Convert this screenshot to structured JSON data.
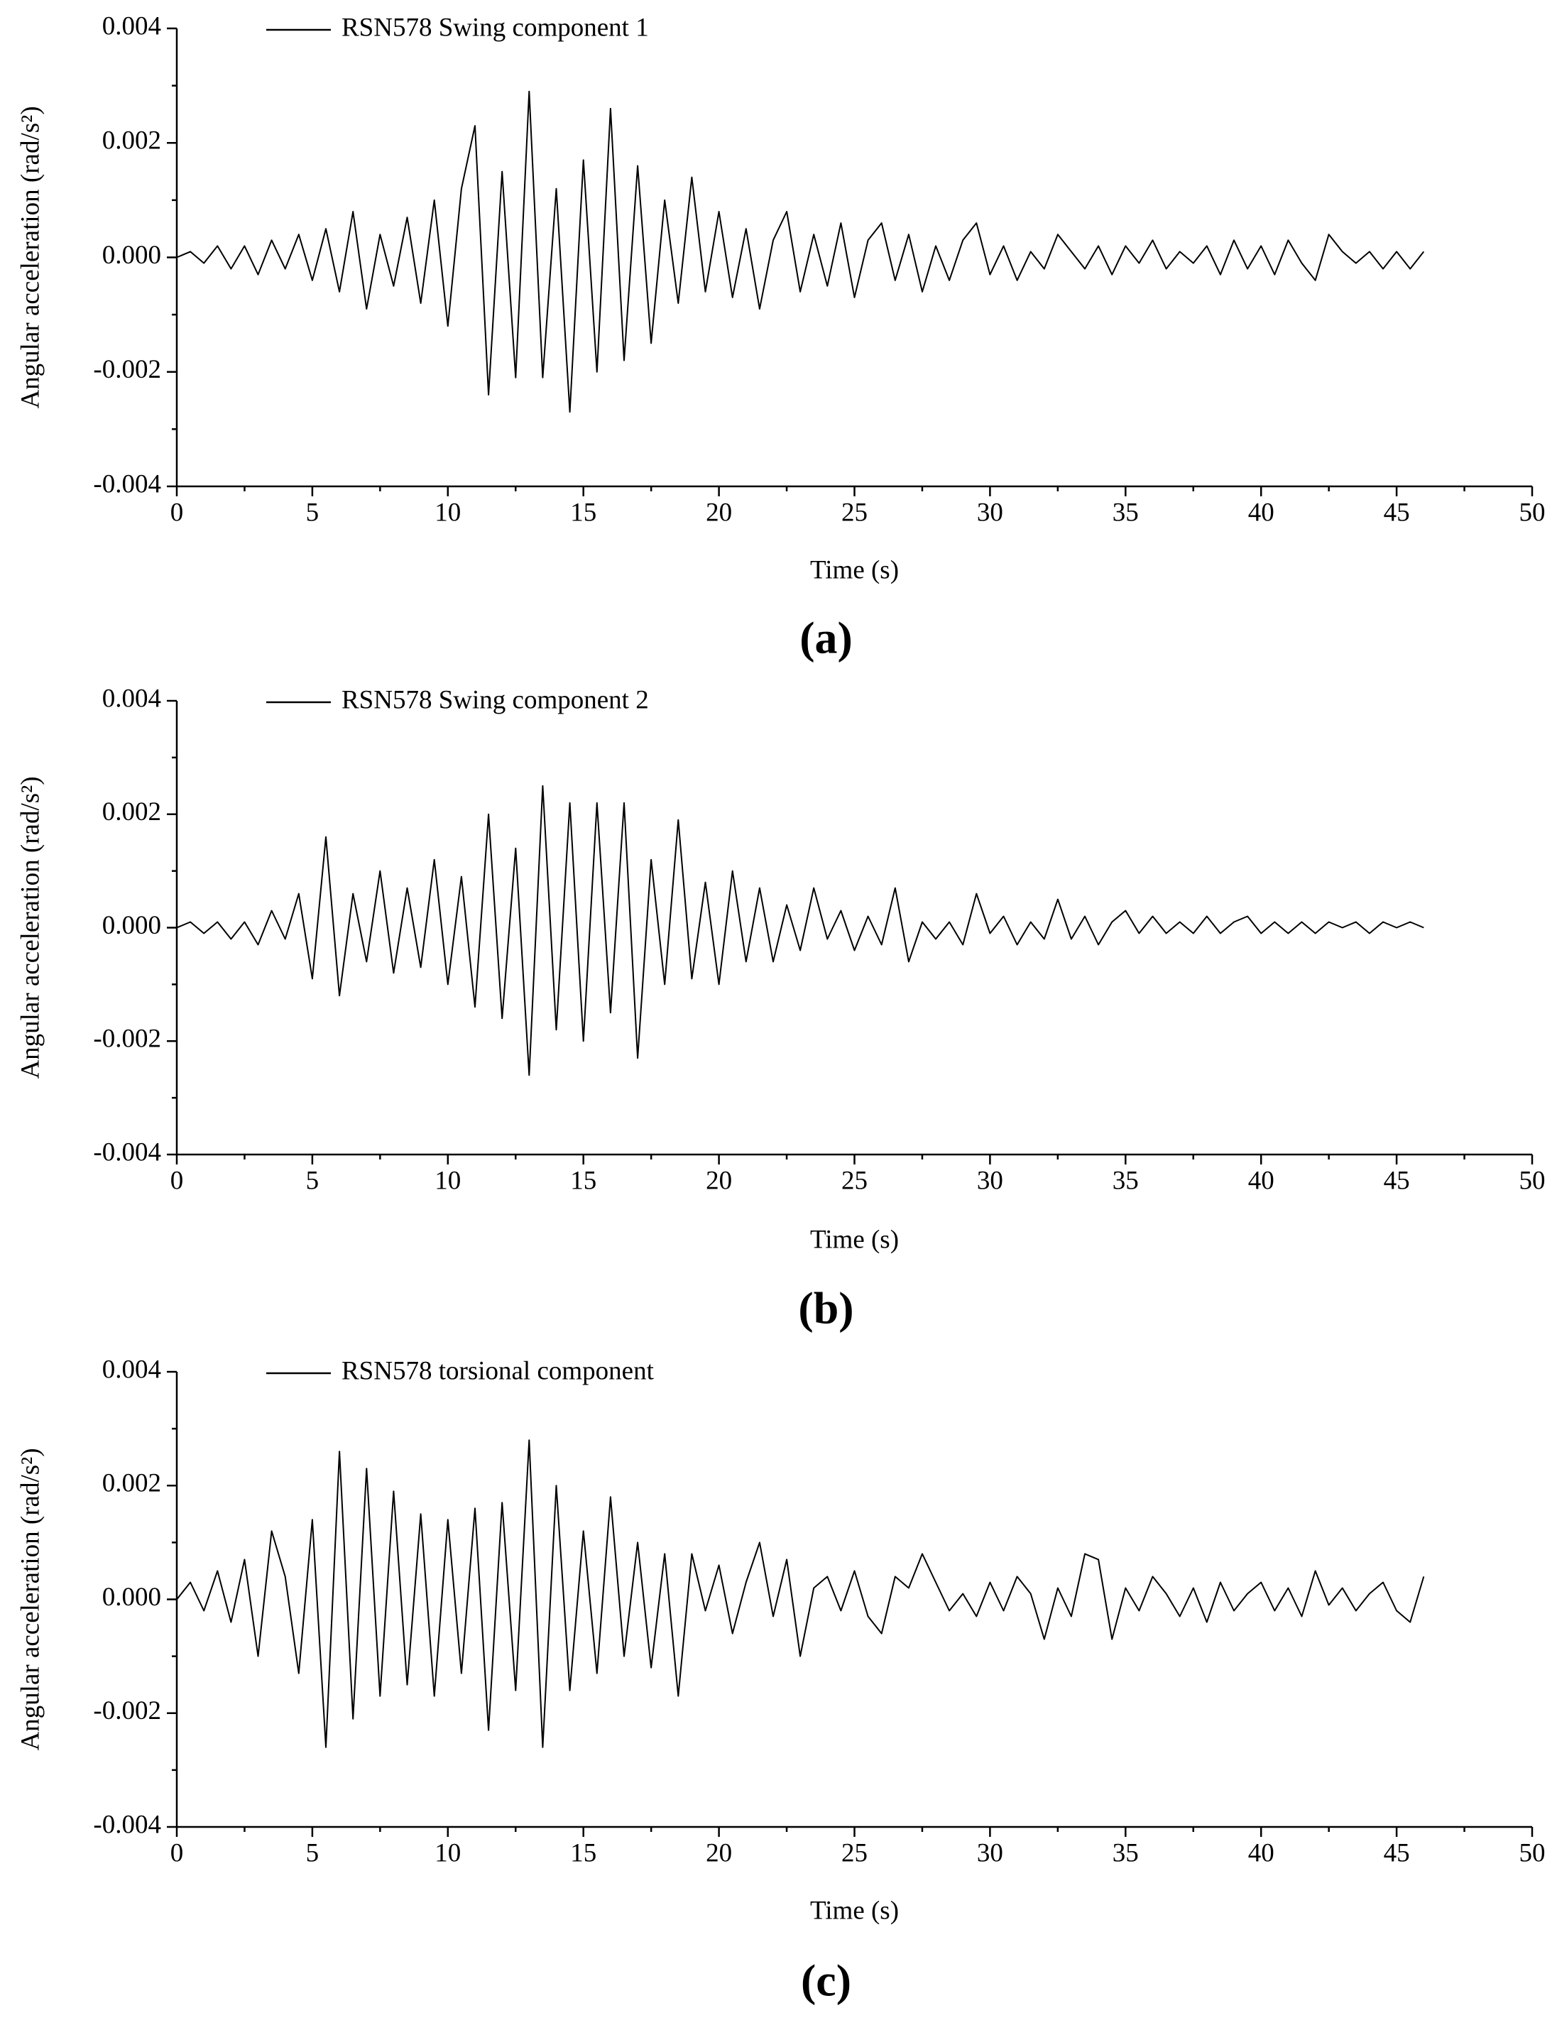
{
  "chart_data": [
    {
      "type": "line",
      "panel_label": "(a)",
      "xlabel": "Time (s)",
      "ylabel": "Angular acceleration (rad/s²)",
      "legend": "upper left",
      "x": [
        0,
        0.5,
        1,
        1.5,
        2,
        2.5,
        3,
        3.5,
        4,
        4.5,
        5,
        5.5,
        6,
        6.5,
        7,
        7.5,
        8,
        8.5,
        9,
        9.5,
        10,
        10.5,
        11,
        11.5,
        12,
        12.5,
        13,
        13.5,
        14,
        14.5,
        15,
        15.5,
        16,
        16.5,
        17,
        17.5,
        18,
        18.5,
        19,
        19.5,
        20,
        20.5,
        21,
        21.5,
        22,
        22.5,
        23,
        23.5,
        24,
        24.5,
        25,
        25.5,
        26,
        26.5,
        27,
        27.5,
        28,
        28.5,
        29,
        29.5,
        30,
        30.5,
        31,
        31.5,
        32,
        32.5,
        33,
        33.5,
        34,
        34.5,
        35,
        35.5,
        36,
        36.5,
        37,
        37.5,
        38,
        38.5,
        39,
        39.5,
        40,
        40.5,
        41,
        41.5,
        42,
        42.5,
        43,
        43.5,
        44,
        44.5,
        45,
        45.5,
        46
      ],
      "series": [
        {
          "name": "RSN578 Swing component 1",
          "color": "#000000",
          "values": [
            0,
            0.0001,
            -0.0001,
            0.0002,
            -0.0002,
            0.0002,
            -0.0003,
            0.0003,
            -0.0002,
            0.0004,
            -0.0004,
            0.0005,
            -0.0006,
            0.0008,
            -0.0009,
            0.0004,
            -0.0005,
            0.0007,
            -0.0008,
            0.001,
            -0.0012,
            0.0012,
            0.0023,
            -0.0024,
            0.0015,
            -0.0021,
            0.0029,
            -0.0021,
            0.0012,
            -0.0027,
            0.0017,
            -0.002,
            0.0026,
            -0.0018,
            0.0016,
            -0.0015,
            0.001,
            -0.0008,
            0.0014,
            -0.0006,
            0.0008,
            -0.0007,
            0.0005,
            -0.0009,
            0.0003,
            0.0008,
            -0.0006,
            0.0004,
            -0.0005,
            0.0006,
            -0.0007,
            0.0003,
            0.0006,
            -0.0004,
            0.0004,
            -0.0006,
            0.0002,
            -0.0004,
            0.0003,
            0.0006,
            -0.0003,
            0.0002,
            -0.0004,
            0.0001,
            -0.0002,
            0.0004,
            0.0001,
            -0.0002,
            0.0002,
            -0.0003,
            0.0002,
            -0.0001,
            0.0003,
            -0.0002,
            0.0001,
            -0.0001,
            0.0002,
            -0.0003,
            0.0003,
            -0.0002,
            0.0002,
            -0.0003,
            0.0003,
            -0.0001,
            -0.0004,
            0.0004,
            0.0001,
            -0.0001,
            0.0001,
            -0.0002,
            0.0001,
            -0.0002,
            0.0001
          ]
        }
      ],
      "xlim": [
        0,
        50
      ],
      "xticks": [
        0,
        5,
        10,
        15,
        20,
        25,
        30,
        35,
        40,
        45,
        50
      ],
      "ylim": [
        -0.004,
        0.004
      ],
      "yticks": [
        -0.004,
        -0.002,
        {
          "value": 0,
          "label": "0.000"
        },
        0.002,
        0.004
      ]
    },
    {
      "type": "line",
      "panel_label": "(b)",
      "xlabel": "Time (s)",
      "ylabel": "Angular acceleration (rad/s²)",
      "legend": "upper left",
      "x": [
        0,
        0.5,
        1,
        1.5,
        2,
        2.5,
        3,
        3.5,
        4,
        4.5,
        5,
        5.5,
        6,
        6.5,
        7,
        7.5,
        8,
        8.5,
        9,
        9.5,
        10,
        10.5,
        11,
        11.5,
        12,
        12.5,
        13,
        13.5,
        14,
        14.5,
        15,
        15.5,
        16,
        16.5,
        17,
        17.5,
        18,
        18.5,
        19,
        19.5,
        20,
        20.5,
        21,
        21.5,
        22,
        22.5,
        23,
        23.5,
        24,
        24.5,
        25,
        25.5,
        26,
        26.5,
        27,
        27.5,
        28,
        28.5,
        29,
        29.5,
        30,
        30.5,
        31,
        31.5,
        32,
        32.5,
        33,
        33.5,
        34,
        34.5,
        35,
        35.5,
        36,
        36.5,
        37,
        37.5,
        38,
        38.5,
        39,
        39.5,
        40,
        40.5,
        41,
        41.5,
        42,
        42.5,
        43,
        43.5,
        44,
        44.5,
        45,
        45.5,
        46
      ],
      "series": [
        {
          "name": "RSN578 Swing component 2",
          "color": "#000000",
          "values": [
            0,
            0.0001,
            -0.0001,
            0.0001,
            -0.0002,
            0.0001,
            -0.0003,
            0.0003,
            -0.0002,
            0.0006,
            -0.0009,
            0.0016,
            -0.0012,
            0.0006,
            -0.0006,
            0.001,
            -0.0008,
            0.0007,
            -0.0007,
            0.0012,
            -0.001,
            0.0009,
            -0.0014,
            0.002,
            -0.0016,
            0.0014,
            -0.0026,
            0.0025,
            -0.0018,
            0.0022,
            -0.002,
            0.0022,
            -0.0015,
            0.0022,
            -0.0023,
            0.0012,
            -0.001,
            0.0019,
            -0.0009,
            0.0008,
            -0.001,
            0.001,
            -0.0006,
            0.0007,
            -0.0006,
            0.0004,
            -0.0004,
            0.0007,
            -0.0002,
            0.0003,
            -0.0004,
            0.0002,
            -0.0003,
            0.0007,
            -0.0006,
            0.0001,
            -0.0002,
            0.0001,
            -0.0003,
            0.0006,
            -0.0001,
            0.0002,
            -0.0003,
            0.0001,
            -0.0002,
            0.0005,
            -0.0002,
            0.0002,
            -0.0003,
            0.0001,
            0.0003,
            -0.0001,
            0.0002,
            -0.0001,
            0.0001,
            -0.0001,
            0.0002,
            -0.0001,
            0.0001,
            0.0002,
            -0.0001,
            0.0001,
            -0.0001,
            0.0001,
            -0.0001,
            0.0001,
            0,
            0.0001,
            -0.0001,
            0.0001,
            0,
            0.0001,
            0
          ]
        }
      ],
      "xlim": [
        0,
        50
      ],
      "xticks": [
        0,
        5,
        10,
        15,
        20,
        25,
        30,
        35,
        40,
        45,
        50
      ],
      "ylim": [
        -0.004,
        0.004
      ],
      "yticks": [
        -0.004,
        -0.002,
        {
          "value": 0,
          "label": "0.000"
        },
        0.002,
        0.004
      ]
    },
    {
      "type": "line",
      "panel_label": "(c)",
      "xlabel": "Time (s)",
      "ylabel": "Angular acceleration (rad/s²)",
      "legend": "upper left",
      "x": [
        0,
        0.5,
        1,
        1.5,
        2,
        2.5,
        3,
        3.5,
        4,
        4.5,
        5,
        5.5,
        6,
        6.5,
        7,
        7.5,
        8,
        8.5,
        9,
        9.5,
        10,
        10.5,
        11,
        11.5,
        12,
        12.5,
        13,
        13.5,
        14,
        14.5,
        15,
        15.5,
        16,
        16.5,
        17,
        17.5,
        18,
        18.5,
        19,
        19.5,
        20,
        20.5,
        21,
        21.5,
        22,
        22.5,
        23,
        23.5,
        24,
        24.5,
        25,
        25.5,
        26,
        26.5,
        27,
        27.5,
        28,
        28.5,
        29,
        29.5,
        30,
        30.5,
        31,
        31.5,
        32,
        32.5,
        33,
        33.5,
        34,
        34.5,
        35,
        35.5,
        36,
        36.5,
        37,
        37.5,
        38,
        38.5,
        39,
        39.5,
        40,
        40.5,
        41,
        41.5,
        42,
        42.5,
        43,
        43.5,
        44,
        44.5,
        45,
        45.5,
        46
      ],
      "series": [
        {
          "name": "RSN578 torsional component",
          "color": "#000000",
          "values": [
            0,
            0.0003,
            -0.0002,
            0.0005,
            -0.0004,
            0.0007,
            -0.001,
            0.0012,
            0.0004,
            -0.0013,
            0.0014,
            -0.0026,
            0.0026,
            -0.0021,
            0.0023,
            -0.0017,
            0.0019,
            -0.0015,
            0.0015,
            -0.0017,
            0.0014,
            -0.0013,
            0.0016,
            -0.0023,
            0.0017,
            -0.0016,
            0.0028,
            -0.0026,
            0.002,
            -0.0016,
            0.0012,
            -0.0013,
            0.0018,
            -0.001,
            0.001,
            -0.0012,
            0.0008,
            -0.0017,
            0.0008,
            -0.0002,
            0.0006,
            -0.0006,
            0.0003,
            0.001,
            -0.0003,
            0.0007,
            -0.001,
            0.0002,
            0.0004,
            -0.0002,
            0.0005,
            -0.0003,
            -0.0006,
            0.0004,
            0.0002,
            0.0008,
            0.0003,
            -0.0002,
            0.0001,
            -0.0003,
            0.0003,
            -0.0002,
            0.0004,
            0.0001,
            -0.0007,
            0.0002,
            -0.0003,
            0.0008,
            0.0007,
            -0.0007,
            0.0002,
            -0.0002,
            0.0004,
            0.0001,
            -0.0003,
            0.0002,
            -0.0004,
            0.0003,
            -0.0002,
            0.0001,
            0.0003,
            -0.0002,
            0.0002,
            -0.0003,
            0.0005,
            -0.0001,
            0.0002,
            -0.0002,
            0.0001,
            0.0003,
            -0.0002,
            -0.0004,
            0.0004
          ]
        }
      ],
      "xlim": [
        0,
        50
      ],
      "xticks": [
        0,
        5,
        10,
        15,
        20,
        25,
        30,
        35,
        40,
        45,
        50
      ],
      "ylim": [
        -0.004,
        0.004
      ],
      "yticks": [
        -0.004,
        -0.002,
        {
          "value": 0,
          "label": "0.000"
        },
        0.002,
        0.004
      ]
    }
  ]
}
